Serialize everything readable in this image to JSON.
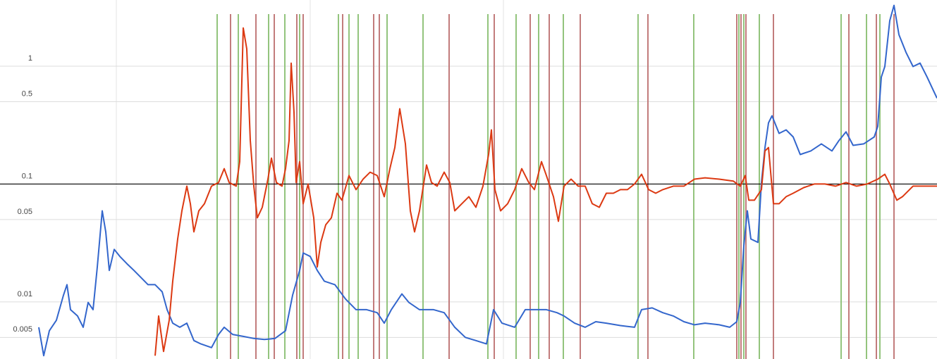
{
  "chart_data": {
    "type": "line",
    "log_y": true,
    "grid": true,
    "xlim": [
      0,
      1329
    ],
    "ylim": [
      0.00328,
      3.64
    ],
    "yticks": [
      1,
      0.5,
      0.1,
      0.05,
      0.01,
      0.005
    ],
    "reference_line": {
      "value": 0.1,
      "color": "#000000"
    },
    "series": [
      {
        "color": "#3366cc",
        "x": [
          55,
          62,
          70,
          80,
          90,
          95,
          100,
          110,
          118,
          125,
          132,
          138,
          145,
          150,
          155,
          162,
          170,
          180,
          190,
          200,
          210,
          220,
          230,
          237,
          245,
          255,
          265,
          275,
          285,
          300,
          310,
          318,
          330,
          345,
          360,
          375,
          390,
          405,
          415,
          425,
          430,
          440,
          450,
          460,
          475,
          490,
          505,
          520,
          535,
          545,
          555,
          570,
          580,
          595,
          615,
          630,
          645,
          660,
          675,
          690,
          700,
          712,
          730,
          745,
          760,
          775,
          790,
          800,
          815,
          830,
          845,
          860,
          880,
          900,
          910,
          925,
          940,
          955,
          970,
          985,
          1000,
          1020,
          1035,
          1045,
          1050,
          1055,
          1060,
          1065,
          1075,
          1080,
          1085,
          1090,
          1095,
          1105,
          1115,
          1125,
          1135,
          1150,
          1165,
          1180,
          1190,
          1200,
          1210,
          1225,
          1240,
          1245,
          1250,
          1255,
          1262,
          1268,
          1275,
          1285,
          1295,
          1305,
          1315,
          1329
        ],
        "values": [
          0.0061,
          0.0035,
          0.0057,
          0.007,
          0.0114,
          0.014,
          0.0086,
          0.0076,
          0.0061,
          0.0099,
          0.0086,
          0.0198,
          0.0593,
          0.0393,
          0.0185,
          0.0279,
          0.0243,
          0.0211,
          0.0185,
          0.0161,
          0.014,
          0.014,
          0.0122,
          0.0086,
          0.0066,
          0.0061,
          0.0066,
          0.0047,
          0.0044,
          0.0041,
          0.0053,
          0.0061,
          0.0053,
          0.0051,
          0.0049,
          0.0048,
          0.0049,
          0.0057,
          0.0114,
          0.0185,
          0.026,
          0.0243,
          0.0185,
          0.015,
          0.014,
          0.0106,
          0.0086,
          0.0086,
          0.0081,
          0.0066,
          0.0086,
          0.0117,
          0.0099,
          0.0086,
          0.0086,
          0.0081,
          0.0061,
          0.005,
          0.0047,
          0.0044,
          0.0086,
          0.0066,
          0.0061,
          0.0086,
          0.0086,
          0.0086,
          0.0081,
          0.0076,
          0.0066,
          0.0061,
          0.0068,
          0.0066,
          0.0063,
          0.0061,
          0.0086,
          0.0089,
          0.0081,
          0.0076,
          0.0068,
          0.0064,
          0.0066,
          0.0064,
          0.0061,
          0.0068,
          0.0099,
          0.0299,
          0.0593,
          0.0342,
          0.032,
          0.103,
          0.204,
          0.33,
          0.379,
          0.269,
          0.288,
          0.251,
          0.178,
          0.191,
          0.219,
          0.191,
          0.234,
          0.277,
          0.213,
          0.219,
          0.251,
          0.309,
          0.807,
          0.993,
          2.43,
          3.28,
          1.85,
          1.31,
          0.993,
          1.06,
          0.807,
          0.535
        ]
      },
      {
        "color": "#dc3912",
        "x": [
          220,
          225,
          232,
          240,
          245,
          252,
          258,
          265,
          270,
          275,
          282,
          290,
          300,
          310,
          318,
          325,
          335,
          340,
          345,
          350,
          355,
          360,
          365,
          372,
          380,
          385,
          392,
          400,
          405,
          410,
          413,
          417,
          420,
          425,
          430,
          437,
          445,
          450,
          455,
          462,
          470,
          478,
          485,
          495,
          505,
          515,
          525,
          535,
          545,
          553,
          560,
          567,
          575,
          582,
          588,
          595,
          605,
          612,
          620,
          630,
          638,
          645,
          655,
          665,
          675,
          685,
          693,
          697,
          702,
          710,
          720,
          730,
          740,
          750,
          758,
          768,
          775,
          785,
          792,
          800,
          810,
          820,
          830,
          840,
          850,
          860,
          870,
          880,
          890,
          900,
          910,
          920,
          930,
          940,
          955,
          970,
          985,
          1000,
          1020,
          1040,
          1050,
          1057,
          1062,
          1070,
          1080,
          1085,
          1090,
          1097,
          1105,
          1115,
          1125,
          1140,
          1155,
          1170,
          1185,
          1200,
          1215,
          1230,
          1245,
          1255,
          1262,
          1272,
          1280,
          1295,
          1310,
          1329
        ],
        "values": [
          0.0035,
          0.0076,
          0.0038,
          0.007,
          0.015,
          0.0342,
          0.0593,
          0.096,
          0.0681,
          0.0393,
          0.0593,
          0.0681,
          0.096,
          0.103,
          0.135,
          0.103,
          0.096,
          0.155,
          2.11,
          1.4,
          0.234,
          0.096,
          0.0517,
          0.0635,
          0.11,
          0.166,
          0.103,
          0.096,
          0.135,
          0.234,
          1.06,
          0.406,
          0.103,
          0.155,
          0.0681,
          0.1,
          0.0517,
          0.0198,
          0.032,
          0.0451,
          0.0517,
          0.0836,
          0.0729,
          0.118,
          0.0896,
          0.11,
          0.126,
          0.118,
          0.0781,
          0.135,
          0.204,
          0.435,
          0.219,
          0.0593,
          0.0393,
          0.0593,
          0.145,
          0.103,
          0.096,
          0.126,
          0.103,
          0.0593,
          0.0681,
          0.0781,
          0.0635,
          0.096,
          0.178,
          0.288,
          0.0896,
          0.0593,
          0.0681,
          0.0896,
          0.135,
          0.103,
          0.0896,
          0.155,
          0.118,
          0.0781,
          0.0483,
          0.096,
          0.11,
          0.096,
          0.096,
          0.0681,
          0.0635,
          0.0836,
          0.0836,
          0.0896,
          0.0896,
          0.1,
          0.121,
          0.0896,
          0.0836,
          0.0896,
          0.096,
          0.096,
          0.11,
          0.113,
          0.11,
          0.106,
          0.096,
          0.118,
          0.0729,
          0.0729,
          0.0896,
          0.191,
          0.204,
          0.0681,
          0.0681,
          0.0781,
          0.0836,
          0.0933,
          0.1,
          0.1,
          0.096,
          0.103,
          0.096,
          0.1,
          0.11,
          0.121,
          0.1,
          0.0729,
          0.0781,
          0.096,
          0.096,
          0.096
        ]
      }
    ],
    "vlines": [
      {
        "color": "#93c47d",
        "x": [
          308,
          338,
          381,
          404,
          425,
          480,
          495,
          508,
          549,
          600,
          692,
          732,
          764,
          799,
          905,
          984,
          1048,
          1055,
          1077,
          1193,
          1229,
          1248
        ]
      },
      {
        "color": "#c27c7c",
        "x": [
          327,
          363,
          389,
          421,
          430,
          486,
          530,
          538,
          637,
          701,
          752,
          779,
          823,
          919,
          1045,
          1051,
          1058,
          1097,
          1204,
          1243,
          1268
        ]
      }
    ]
  }
}
